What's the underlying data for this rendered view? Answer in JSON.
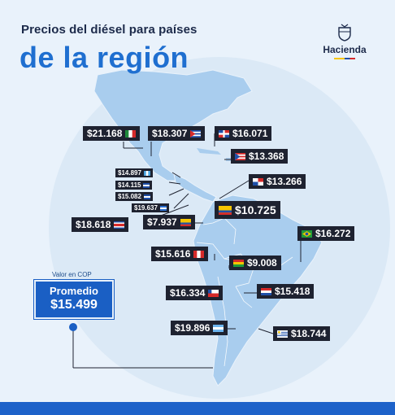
{
  "title_line1": "Precios del diésel para países",
  "title_line2": "de la región",
  "brand": "Hacienda",
  "avg_caption": "Valor en COP",
  "avg_label": "Promedio",
  "avg_value": "$15.499",
  "chart_data": {
    "type": "map",
    "title": "Precios del diésel para países de la región",
    "unit": "COP",
    "average": 15499,
    "points": [
      {
        "label": "$21.168",
        "value": 21168,
        "flag": "mexico"
      },
      {
        "label": "$18.307",
        "value": 18307,
        "flag": "cuba"
      },
      {
        "label": "$16.071",
        "value": 16071,
        "flag": "dominican-republic"
      },
      {
        "label": "$13.368",
        "value": 13368,
        "flag": "puerto-rico"
      },
      {
        "label": "$14.897",
        "value": 14897,
        "flag": "guatemala"
      },
      {
        "label": "$14.115",
        "value": 14115,
        "flag": "honduras"
      },
      {
        "label": "$15.082",
        "value": 15082,
        "flag": "el-salvador"
      },
      {
        "label": "$19.637",
        "value": 19637,
        "flag": "nicaragua"
      },
      {
        "label": "$13.266",
        "value": 13266,
        "flag": "panama"
      },
      {
        "label": "$18.618",
        "value": 18618,
        "flag": "costa-rica"
      },
      {
        "label": "$7.937",
        "value": 7937,
        "flag": "ecuador"
      },
      {
        "label": "$10.725",
        "value": 10725,
        "flag": "colombia"
      },
      {
        "label": "$16.272",
        "value": 16272,
        "flag": "brazil"
      },
      {
        "label": "$15.616",
        "value": 15616,
        "flag": "peru"
      },
      {
        "label": "$9.008",
        "value": 9008,
        "flag": "bolivia"
      },
      {
        "label": "$16.334",
        "value": 16334,
        "flag": "chile"
      },
      {
        "label": "$15.418",
        "value": 15418,
        "flag": "paraguay"
      },
      {
        "label": "$19.896",
        "value": 19896,
        "flag": "argentina"
      },
      {
        "label": "$18.744",
        "value": 18744,
        "flag": "uruguay"
      }
    ]
  }
}
